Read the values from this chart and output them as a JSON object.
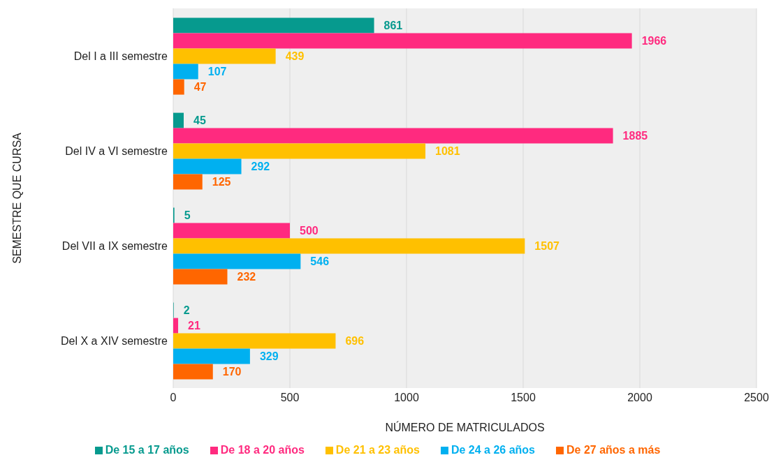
{
  "chart_data": {
    "type": "bar",
    "orientation": "horizontal",
    "xlabel": "NÚMERO DE MATRICULADOS",
    "ylabel": "SEMESTRE QUE CURSA",
    "categories": [
      "Del I a III semestre",
      "Del IV a VI semestre",
      "Del VII a IX semestre",
      "Del X a XIV semestre"
    ],
    "series": [
      {
        "name": "De 15 a 17 años",
        "color": "#069a8e",
        "values": [
          861,
          45,
          5,
          2
        ]
      },
      {
        "name": "De 18 a 20 años",
        "color": "#ff2a7f",
        "values": [
          1966,
          1885,
          500,
          21
        ]
      },
      {
        "name": "De 21 a 23 años",
        "color": "#ffc000",
        "values": [
          439,
          1081,
          1507,
          696
        ]
      },
      {
        "name": "De 24 a 26 años",
        "color": "#00b0f0",
        "values": [
          107,
          292,
          546,
          329
        ]
      },
      {
        "name": "De 27 años a más",
        "color": "#ff6600",
        "values": [
          47,
          125,
          232,
          170
        ]
      }
    ],
    "xlim": [
      0,
      2500
    ],
    "xticks": [
      0,
      500,
      1000,
      1500,
      2000,
      2500
    ],
    "grid": "x",
    "legend": "bottom",
    "data_labels": true
  }
}
